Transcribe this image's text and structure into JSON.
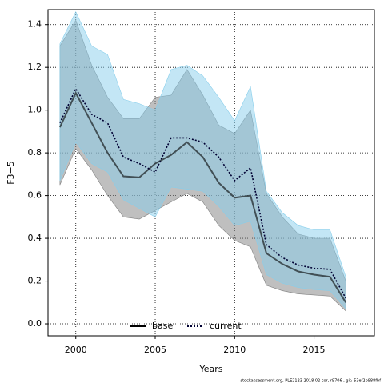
{
  "chart_data": {
    "type": "line_band",
    "x_label": "Years",
    "y_label": "F̄3−5",
    "footer": "stockassessment.org, PLE2123 2018 02 cor, r9706 , git: 53ef2b988fbf",
    "x": [
      1999,
      2000,
      2001,
      2002,
      2003,
      2004,
      2005,
      2006,
      2007,
      2008,
      2009,
      2010,
      2011,
      2012,
      2013,
      2014,
      2015,
      2016,
      2017
    ],
    "series": [
      {
        "name": "base",
        "color": "#000000",
        "dash": "solid",
        "band_color": "#808080",
        "values": [
          0.92,
          1.08,
          0.94,
          0.8,
          0.69,
          0.685,
          0.75,
          0.79,
          0.85,
          0.78,
          0.66,
          0.59,
          0.6,
          0.33,
          0.28,
          0.245,
          0.23,
          0.22,
          0.1
        ],
        "lower": [
          0.65,
          0.82,
          0.72,
          0.6,
          0.5,
          0.49,
          0.53,
          0.57,
          0.61,
          0.57,
          0.46,
          0.39,
          0.36,
          0.18,
          0.155,
          0.14,
          0.135,
          0.13,
          0.06
        ],
        "upper": [
          1.3,
          1.42,
          1.21,
          1.06,
          0.96,
          0.96,
          1.06,
          1.07,
          1.19,
          1.07,
          0.93,
          0.89,
          1.0,
          0.61,
          0.5,
          0.42,
          0.4,
          0.4,
          0.2
        ]
      },
      {
        "name": "current",
        "color": "#000033",
        "dash": "dotted",
        "band_color": "#87ceeb",
        "values": [
          0.94,
          1.1,
          0.98,
          0.94,
          0.78,
          0.75,
          0.71,
          0.87,
          0.87,
          0.85,
          0.78,
          0.67,
          0.73,
          0.37,
          0.31,
          0.275,
          0.26,
          0.255,
          0.12
        ],
        "lower": [
          0.67,
          0.85,
          0.75,
          0.71,
          0.58,
          0.54,
          0.5,
          0.64,
          0.63,
          0.62,
          0.55,
          0.46,
          0.48,
          0.23,
          0.19,
          0.17,
          0.16,
          0.155,
          0.07
        ],
        "upper": [
          1.31,
          1.46,
          1.3,
          1.26,
          1.05,
          1.03,
          1.0,
          1.19,
          1.21,
          1.16,
          1.06,
          0.95,
          1.11,
          0.62,
          0.52,
          0.46,
          0.44,
          0.44,
          0.22
        ]
      }
    ],
    "xlim": [
      1998.25,
      2018.8
    ],
    "xticks": [
      2000,
      2005,
      2010,
      2015
    ],
    "ylim": [
      -0.056,
      1.47
    ],
    "yticks": [
      {
        "value": 0,
        "label": "0.0"
      },
      0.2,
      0.4,
      0.6,
      0.8,
      {
        "value": 1,
        "label": "1.0"
      },
      1.2,
      1.4
    ],
    "grid": true,
    "legend": "bottom"
  }
}
